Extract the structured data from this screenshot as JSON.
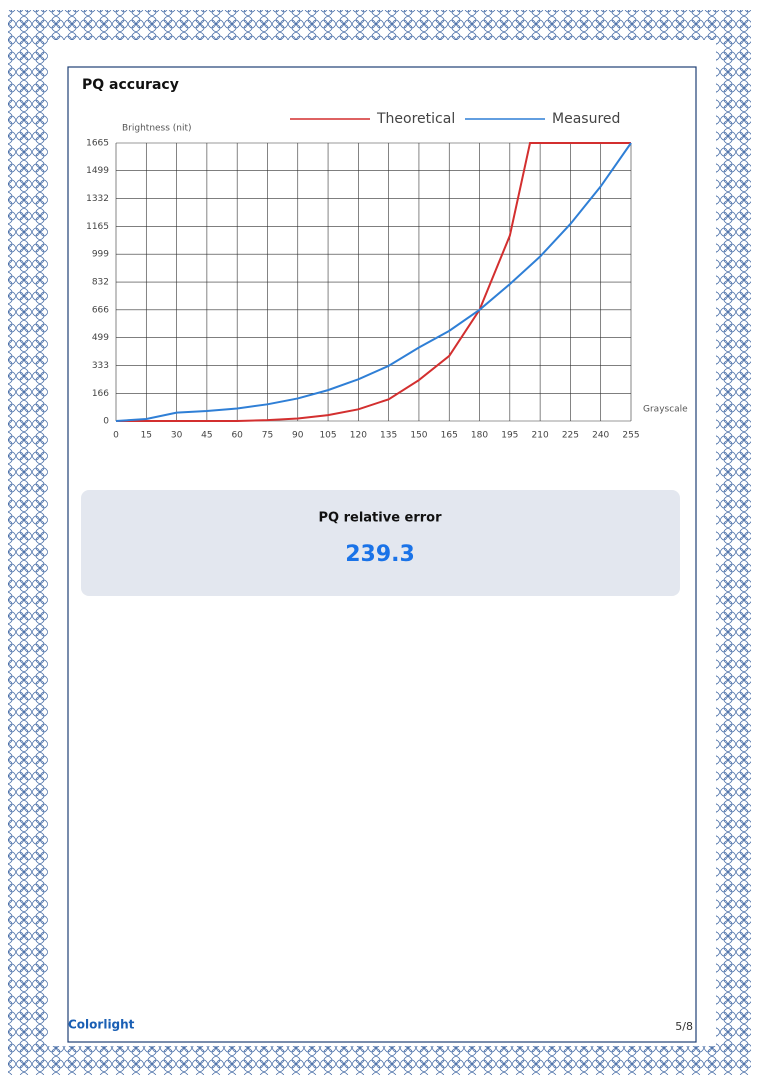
{
  "chart_data": {
    "type": "line",
    "title": "PQ accuracy",
    "ylabel": "Brightness (nit)",
    "xlabel": "Grayscale",
    "x": [
      0,
      15,
      30,
      45,
      60,
      75,
      90,
      105,
      120,
      135,
      150,
      165,
      180,
      195,
      205,
      210,
      225,
      240,
      255
    ],
    "series": [
      {
        "name": "Theoretical",
        "color": "#d32f2f",
        "values": [
          0,
          0,
          0,
          0,
          0,
          5,
          15,
          35,
          70,
          130,
          245,
          390,
          666,
          1110,
          1665,
          1665,
          1665,
          1665,
          1665
        ]
      },
      {
        "name": "Measured",
        "color": "#2f7fd6",
        "values": [
          0,
          12,
          50,
          60,
          75,
          100,
          135,
          185,
          250,
          330,
          440,
          540,
          666,
          820,
          930,
          985,
          1180,
          1405,
          1665
        ]
      }
    ],
    "xlim": [
      0,
      255
    ],
    "xticks": [
      0,
      15,
      30,
      45,
      60,
      75,
      90,
      105,
      120,
      135,
      150,
      165,
      180,
      195,
      210,
      225,
      240,
      255
    ],
    "ylim": [
      0,
      1665
    ],
    "yticks": [
      0,
      166,
      333,
      499,
      666,
      832,
      999,
      1165,
      1332,
      1499,
      1665
    ],
    "grid": true
  },
  "error_panel": {
    "label": "PQ relative error",
    "value": "239.3"
  },
  "footer": {
    "brand": "Colorlight",
    "page": "5/8"
  }
}
